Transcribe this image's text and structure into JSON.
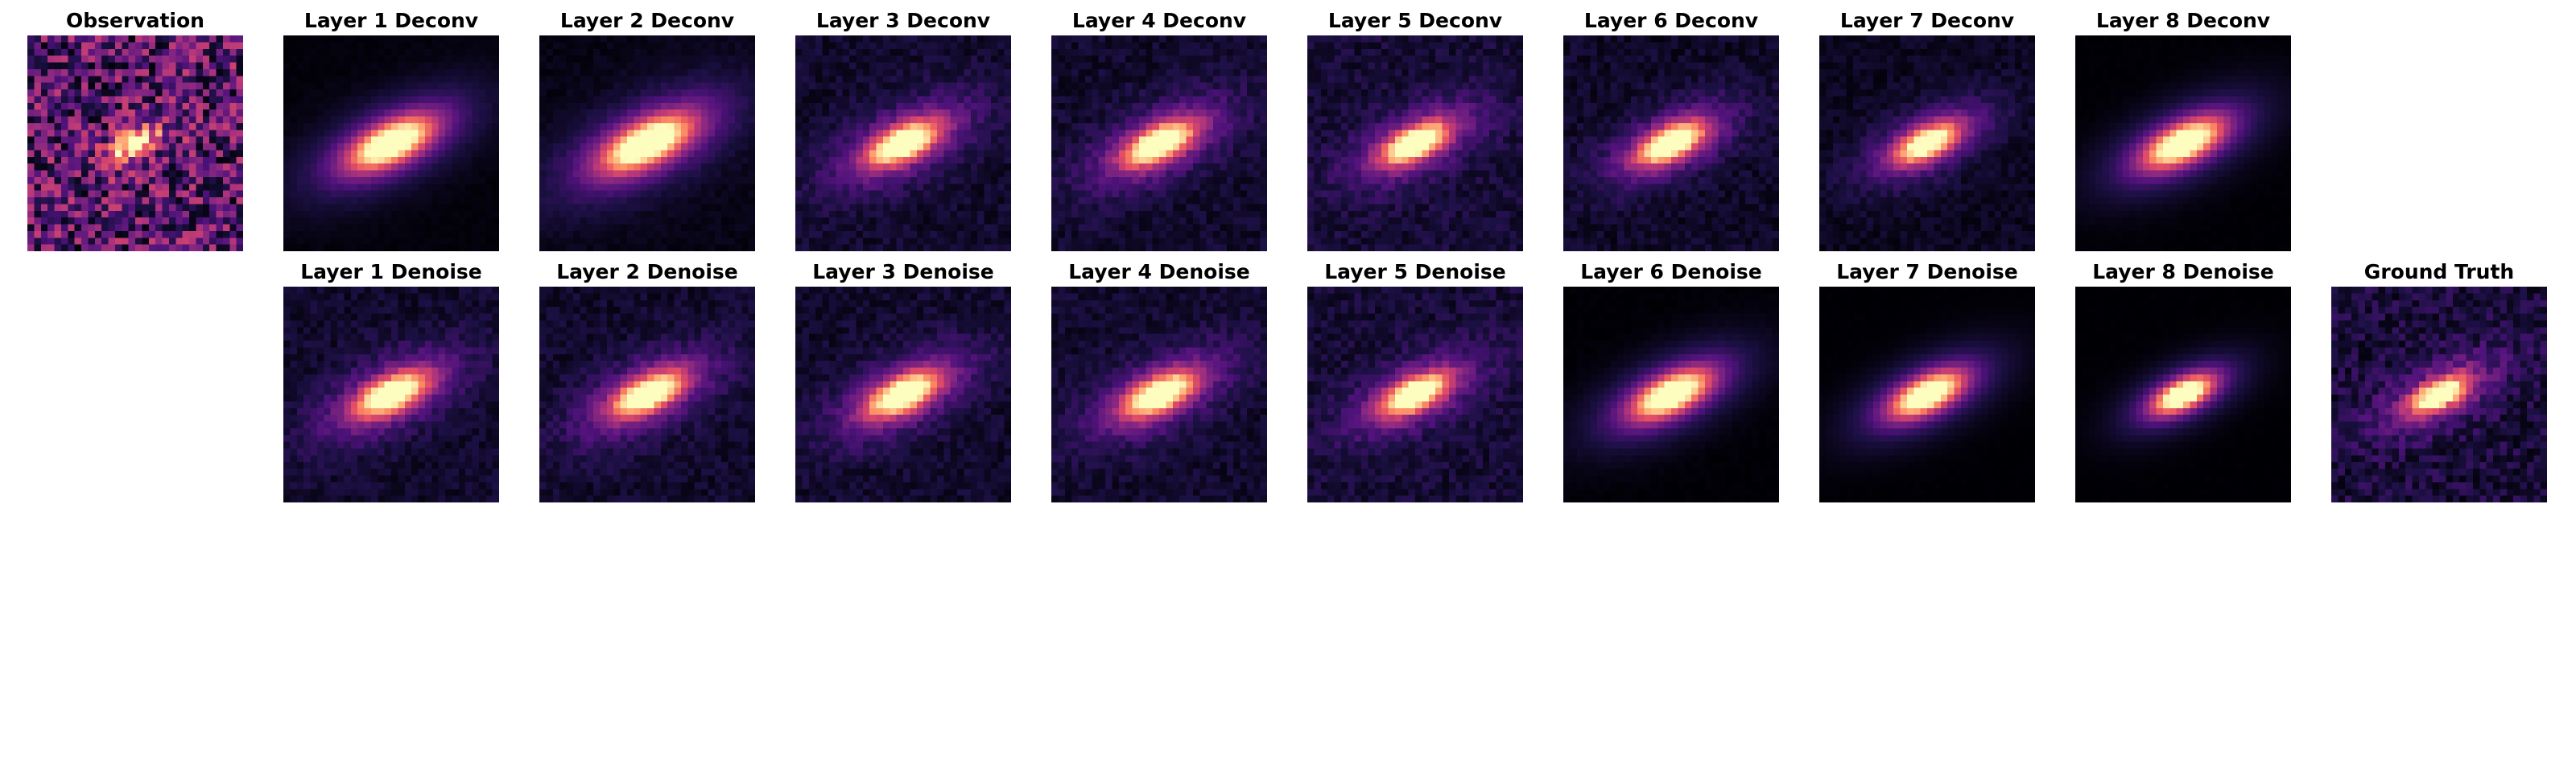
{
  "figure": {
    "row1": [
      {
        "title": "Observation",
        "noise": 0.9,
        "peak": 0.7,
        "bg": 0.35,
        "blur": 0.3
      },
      {
        "title": "Layer 1 Deconv",
        "noise": 0.04,
        "peak": 1.0,
        "bg": 0.02,
        "blur": 1.0
      },
      {
        "title": "Layer 2 Deconv",
        "noise": 0.08,
        "peak": 1.0,
        "bg": 0.05,
        "blur": 1.1
      },
      {
        "title": "Layer 3 Deconv",
        "noise": 0.18,
        "peak": 0.95,
        "bg": 0.12,
        "blur": 0.8
      },
      {
        "title": "Layer 4 Deconv",
        "noise": 0.18,
        "peak": 0.95,
        "bg": 0.12,
        "blur": 0.8
      },
      {
        "title": "Layer 5 Deconv",
        "noise": 0.2,
        "peak": 0.95,
        "bg": 0.15,
        "blur": 0.7
      },
      {
        "title": "Layer 6 Deconv",
        "noise": 0.18,
        "peak": 1.0,
        "bg": 0.1,
        "blur": 0.7
      },
      {
        "title": "Layer 7 Deconv",
        "noise": 0.15,
        "peak": 0.9,
        "bg": 0.08,
        "blur": 0.7
      },
      {
        "title": "Layer 8 Deconv",
        "noise": 0.02,
        "peak": 1.0,
        "bg": 0.0,
        "blur": 0.9
      }
    ],
    "row2": [
      {
        "title": "Layer 1 Denoise",
        "noise": 0.18,
        "peak": 0.95,
        "bg": 0.12,
        "blur": 0.8
      },
      {
        "title": "Layer 2 Denoise",
        "noise": 0.18,
        "peak": 0.95,
        "bg": 0.12,
        "blur": 0.8
      },
      {
        "title": "Layer 3 Denoise",
        "noise": 0.18,
        "peak": 0.95,
        "bg": 0.12,
        "blur": 0.8
      },
      {
        "title": "Layer 4 Denoise",
        "noise": 0.18,
        "peak": 0.95,
        "bg": 0.12,
        "blur": 0.8
      },
      {
        "title": "Layer 5 Denoise",
        "noise": 0.2,
        "peak": 0.95,
        "bg": 0.15,
        "blur": 0.7
      },
      {
        "title": "Layer 6 Denoise",
        "noise": 0.03,
        "peak": 1.0,
        "bg": 0.0,
        "blur": 0.9
      },
      {
        "title": "Layer 7 Denoise",
        "noise": 0.01,
        "peak": 1.0,
        "bg": 0.0,
        "blur": 0.8
      },
      {
        "title": "Layer 8 Denoise",
        "noise": 0.01,
        "peak": 1.0,
        "bg": 0.0,
        "blur": 0.6
      },
      {
        "title": "Ground Truth",
        "noise": 0.3,
        "peak": 0.9,
        "bg": 0.15,
        "blur": 0.6
      }
    ],
    "colormap": "magma"
  }
}
